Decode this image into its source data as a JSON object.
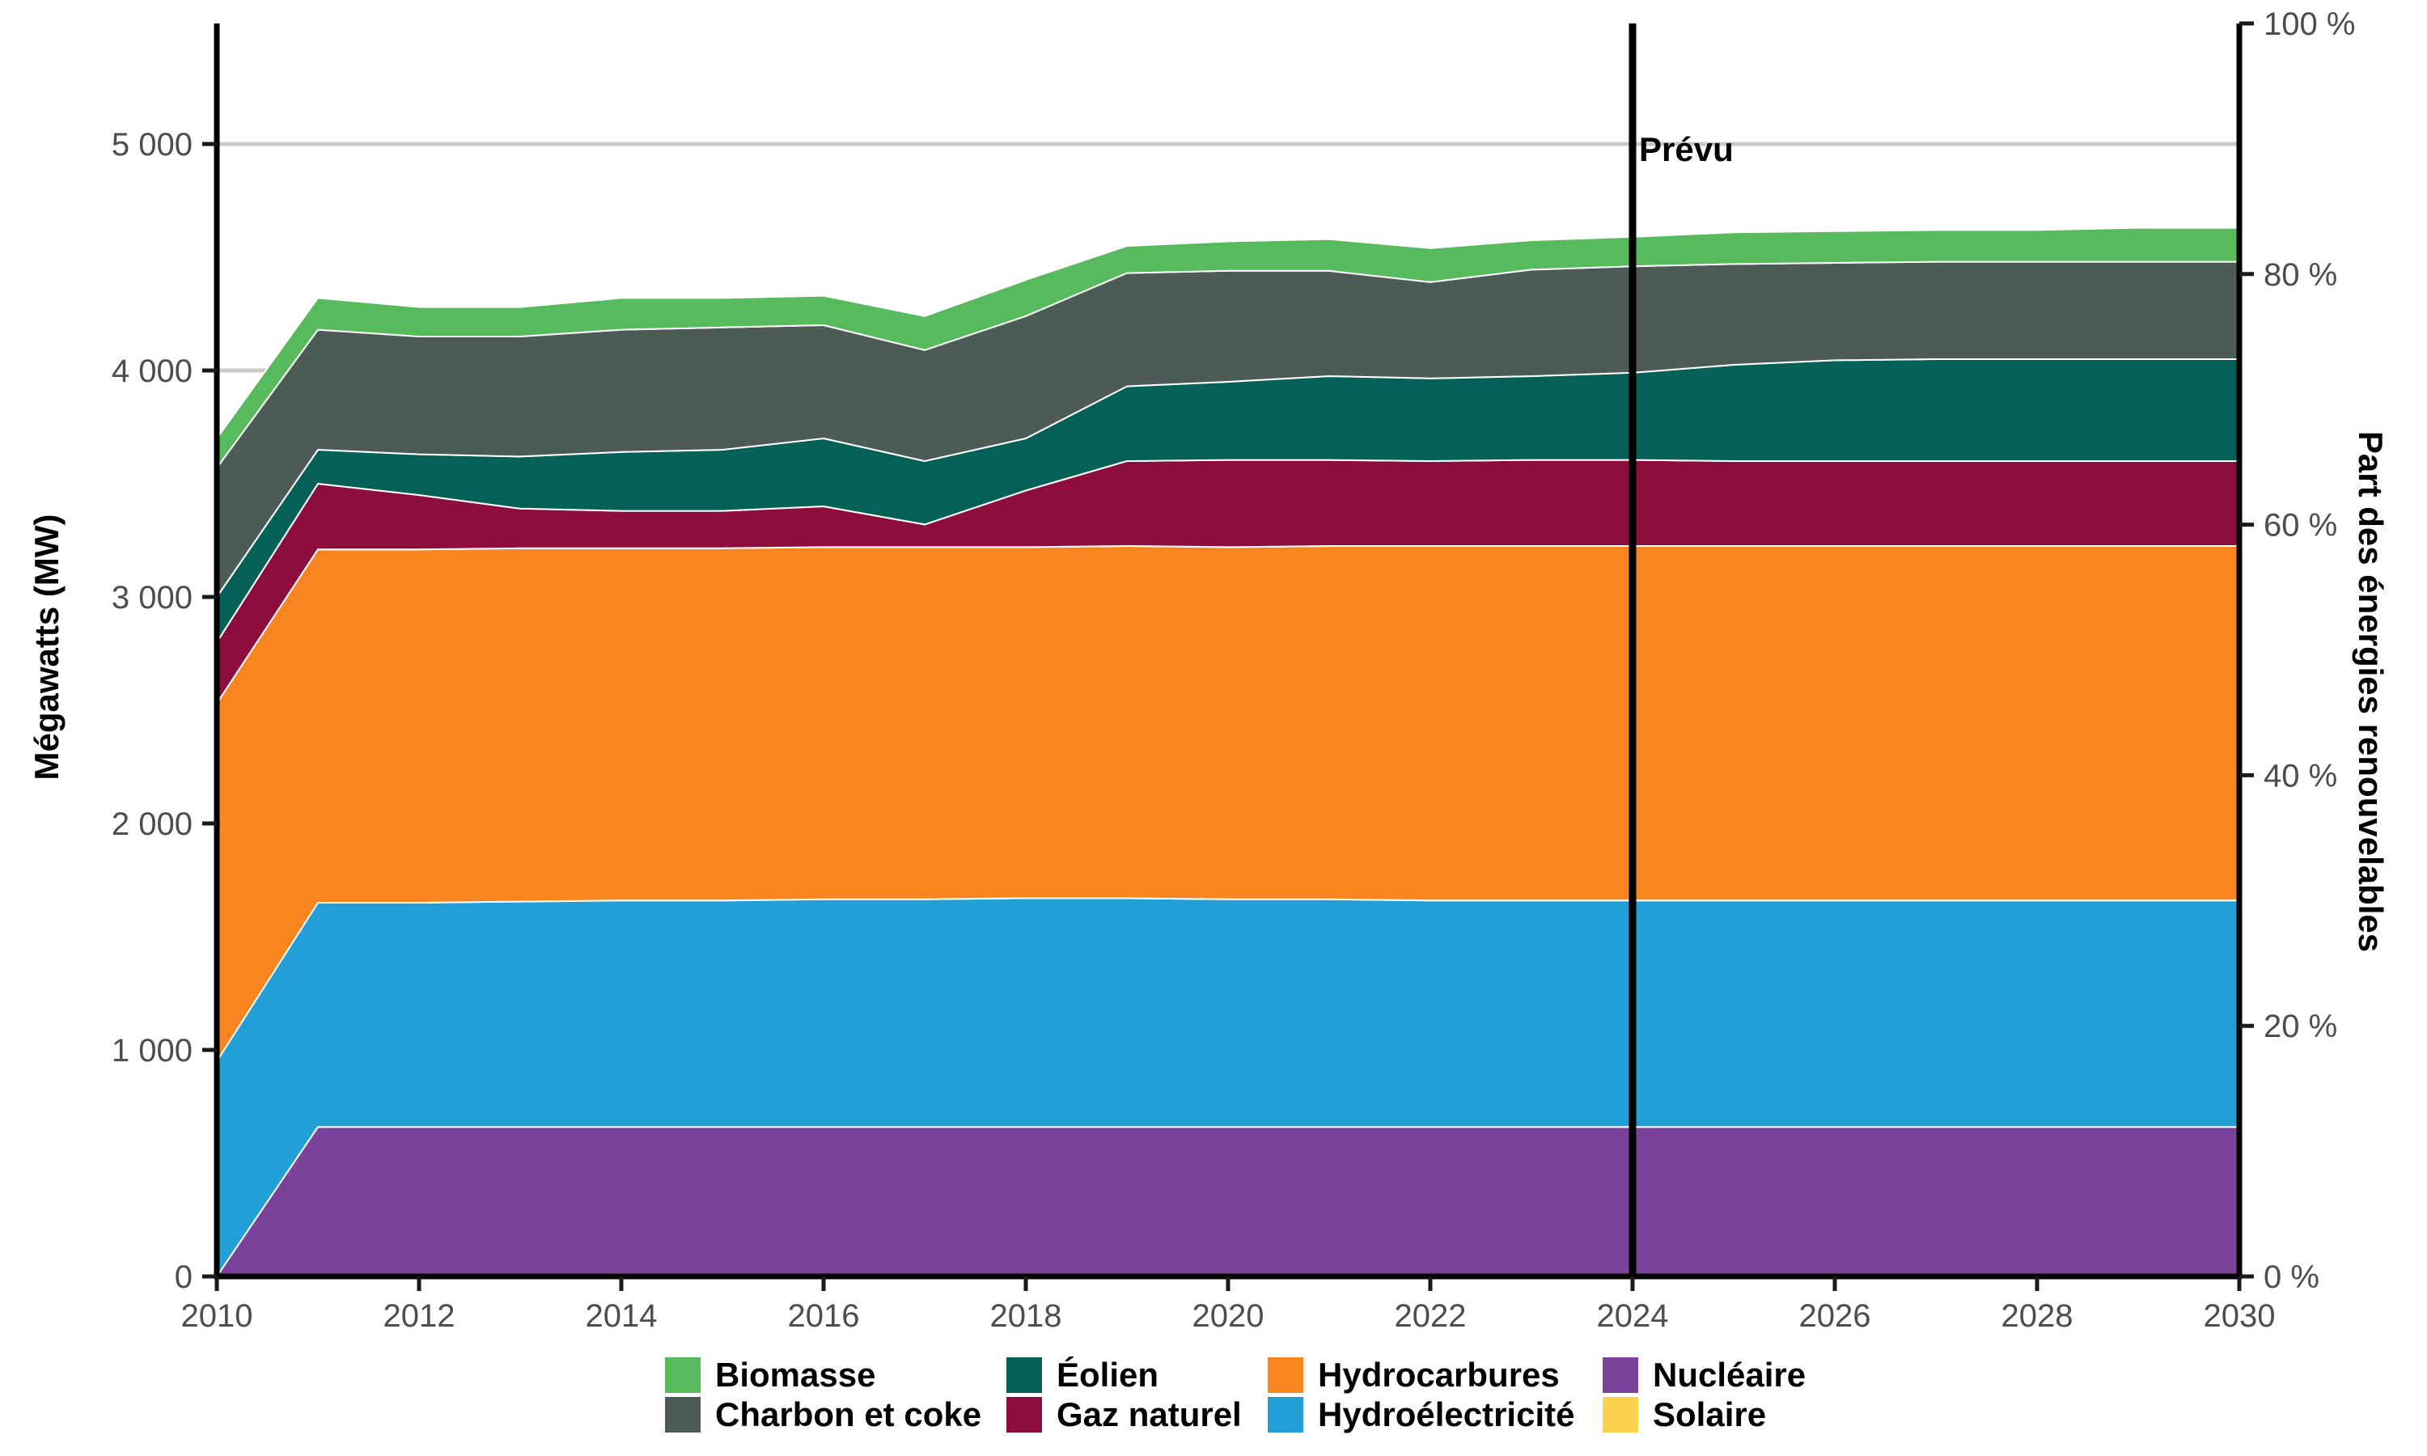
{
  "chart_data": {
    "type": "area",
    "stacked": true,
    "title": "",
    "xlabel": "",
    "ylabel_left": "Mégawatts (MW)",
    "ylabel_right": "Part des énergies renouvelables",
    "xlim": [
      2010,
      2030
    ],
    "ylim_left": [
      0,
      5530
    ],
    "ylim_right": [
      0,
      100
    ],
    "grid": "horizontal-only",
    "legend_position": "bottom",
    "x": [
      2010,
      2011,
      2012,
      2013,
      2014,
      2015,
      2016,
      2017,
      2018,
      2019,
      2020,
      2021,
      2022,
      2023,
      2024,
      2025,
      2026,
      2027,
      2028,
      2029,
      2030
    ],
    "x_tick_labels": [
      "2010",
      "2012",
      "2014",
      "2016",
      "2018",
      "2020",
      "2022",
      "2024",
      "2026",
      "2028",
      "2030"
    ],
    "x_tick_values": [
      2010,
      2012,
      2014,
      2016,
      2018,
      2020,
      2022,
      2024,
      2026,
      2028,
      2030
    ],
    "left_axis_ticks": [
      {
        "value": 0,
        "label": "0"
      },
      {
        "value": 1000,
        "label": "1 000"
      },
      {
        "value": 2000,
        "label": "2 000"
      },
      {
        "value": 3000,
        "label": "3 000"
      },
      {
        "value": 4000,
        "label": "4 000"
      },
      {
        "value": 5000,
        "label": "5 000"
      }
    ],
    "right_axis_ticks": [
      {
        "value": 0,
        "label": "0 %"
      },
      {
        "value": 20,
        "label": "20 %"
      },
      {
        "value": 40,
        "label": "40 %"
      },
      {
        "value": 60,
        "label": "60 %"
      },
      {
        "value": 80,
        "label": "80 %"
      },
      {
        "value": 100,
        "label": "100 %"
      }
    ],
    "series": [
      {
        "name": "Nucléaire",
        "color": "#7B429C",
        "values": [
          0,
          660,
          660,
          660,
          660,
          660,
          660,
          660,
          660,
          660,
          660,
          660,
          660,
          660,
          660,
          660,
          660,
          660,
          660,
          660,
          660
        ]
      },
      {
        "name": "Hydroélectricité",
        "color": "#219FD6",
        "values": [
          950,
          990,
          990,
          995,
          1000,
          1000,
          1005,
          1005,
          1010,
          1010,
          1005,
          1005,
          1000,
          1000,
          1000,
          1000,
          1000,
          1000,
          1000,
          1000,
          1000
        ]
      },
      {
        "name": "Hydrocarbures",
        "color": "#F8851F",
        "values": [
          1580,
          1560,
          1560,
          1560,
          1555,
          1555,
          1555,
          1555,
          1550,
          1555,
          1555,
          1560,
          1565,
          1565,
          1565,
          1565,
          1565,
          1565,
          1565,
          1565,
          1565
        ]
      },
      {
        "name": "Gaz naturel",
        "color": "#8D0E3D",
        "values": [
          270,
          290,
          240,
          175,
          165,
          165,
          180,
          100,
          250,
          375,
          385,
          380,
          375,
          380,
          380,
          375,
          375,
          375,
          375,
          375,
          375
        ]
      },
      {
        "name": "Éolien",
        "color": "#056157",
        "values": [
          200,
          150,
          180,
          230,
          260,
          270,
          300,
          280,
          230,
          330,
          345,
          370,
          365,
          370,
          385,
          425,
          445,
          450,
          450,
          450,
          450
        ]
      },
      {
        "name": "Charbon et coke",
        "color": "#4D5B56",
        "values": [
          570,
          530,
          520,
          530,
          540,
          540,
          500,
          490,
          540,
          500,
          490,
          465,
          425,
          470,
          470,
          445,
          430,
          430,
          430,
          430,
          430
        ]
      },
      {
        "name": "Biomasse",
        "color": "#57BB5D",
        "values": [
          130,
          140,
          130,
          130,
          140,
          130,
          130,
          150,
          160,
          120,
          130,
          140,
          150,
          130,
          130,
          140,
          140,
          140,
          140,
          150,
          150
        ]
      },
      {
        "name": "Solaire",
        "color": "#FBD24E",
        "values": [
          0,
          0,
          0,
          0,
          0,
          0,
          0,
          0,
          0,
          0,
          0,
          0,
          0,
          0,
          0,
          0,
          0,
          0,
          0,
          0,
          0
        ]
      }
    ],
    "annotation": {
      "label": "Prévu",
      "x_year": 2024
    }
  },
  "legend": {
    "columns": [
      [
        "Biomasse",
        "Charbon et coke"
      ],
      [
        "Éolien",
        "Gaz naturel"
      ],
      [
        "Hydrocarbures",
        "Hydroélectricité"
      ],
      [
        "Nucléaire",
        "Solaire"
      ]
    ]
  },
  "labels": {
    "left_axis_title": "Mégawatts (MW)",
    "right_axis_title": "Part des énergies renouvelables",
    "prevu": "Prévu"
  },
  "colors": {
    "background": "#FFFFFF",
    "gridline": "#C9C9C9",
    "axis_line": "#000000",
    "tick_mark": "#1A1A1A",
    "tick_label": "#4D4D4D",
    "annotation_line": "#000000",
    "area_seam": "#FFFFFF"
  }
}
